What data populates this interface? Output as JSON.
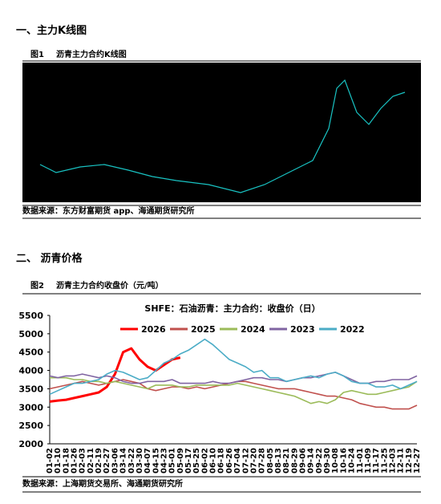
{
  "section1": {
    "heading": "一、主力K线图",
    "figure_label": "图1",
    "figure_title": "沥青主力合约K线图",
    "source": "数据来源：东方财富期货 app、海通期货研究所"
  },
  "section2": {
    "heading": "二、 沥青价格",
    "figure_label": "图2",
    "figure_title": "沥青主力合约收盘价（元/吨）",
    "source": "数据来源：上海期货交易所、海通期货研究所"
  },
  "chart_data": {
    "type": "line",
    "title": "SHFE：石油沥青：主力合约：收盘价（日）",
    "categories": [
      "01-02",
      "01-10",
      "01-18",
      "01-26",
      "02-03",
      "02-11",
      "02-19",
      "02-27",
      "03-06",
      "03-14",
      "03-22",
      "03-30",
      "04-07",
      "04-15",
      "04-23",
      "05-01",
      "05-09",
      "05-17",
      "05-25",
      "06-02",
      "06-10",
      "06-18",
      "06-26",
      "07-04",
      "07-12",
      "07-20",
      "07-28",
      "08-05",
      "08-13",
      "08-21",
      "08-29",
      "09-06",
      "09-14",
      "09-22",
      "09-30",
      "10-08",
      "10-16",
      "10-24",
      "11-01",
      "11-09",
      "11-17",
      "11-25",
      "12-03",
      "12-11",
      "12-19",
      "12-27"
    ],
    "series": [
      {
        "name": "2026",
        "color": "#ff0000",
        "width": 3,
        "values": [
          3150,
          3180,
          3200,
          3250,
          3300,
          3350,
          3400,
          3550,
          3900,
          4500,
          4600,
          4300,
          4100,
          4000,
          4150,
          4300,
          4350,
          null,
          null,
          null,
          null,
          null,
          null,
          null,
          null,
          null,
          null,
          null,
          null,
          null,
          null,
          null,
          null,
          null,
          null,
          null,
          null,
          null,
          null,
          null,
          null,
          null,
          null,
          null,
          null,
          null
        ]
      },
      {
        "name": "2025",
        "color": "#c0504d",
        "width": 1.6,
        "values": [
          3500,
          3550,
          3600,
          3650,
          3700,
          3650,
          3600,
          3650,
          3700,
          3750,
          3700,
          3650,
          3500,
          3450,
          3500,
          3550,
          3550,
          3500,
          3550,
          3500,
          3550,
          3600,
          3650,
          3700,
          3700,
          3650,
          3600,
          3550,
          3500,
          3500,
          3500,
          3450,
          3400,
          3350,
          3300,
          3300,
          3250,
          3200,
          3100,
          3050,
          3000,
          3000,
          2950,
          2950,
          2950,
          3050
        ]
      },
      {
        "name": "2024",
        "color": "#9bbb59",
        "width": 1.6,
        "values": [
          3800,
          3800,
          3800,
          3750,
          3750,
          3700,
          3700,
          3650,
          3700,
          3650,
          3600,
          3550,
          3500,
          3600,
          3600,
          3600,
          3550,
          3550,
          3600,
          3600,
          3600,
          3600,
          3600,
          3650,
          3600,
          3550,
          3500,
          3450,
          3400,
          3350,
          3300,
          3200,
          3100,
          3150,
          3100,
          3200,
          3400,
          3450,
          3400,
          3350,
          3350,
          3400,
          3450,
          3500,
          3550,
          3700
        ]
      },
      {
        "name": "2023",
        "color": "#8064a2",
        "width": 1.6,
        "values": [
          3850,
          3800,
          3850,
          3850,
          3900,
          3850,
          3800,
          3850,
          3800,
          3700,
          3650,
          3650,
          3700,
          3700,
          3700,
          3750,
          3650,
          3650,
          3650,
          3650,
          3700,
          3650,
          3650,
          3700,
          3750,
          3800,
          3800,
          3750,
          3750,
          3700,
          3750,
          3800,
          3800,
          3850,
          3900,
          3950,
          3850,
          3750,
          3650,
          3650,
          3700,
          3700,
          3750,
          3750,
          3750,
          3850
        ]
      },
      {
        "name": "2022",
        "color": "#4bacc6",
        "width": 1.6,
        "values": [
          3350,
          3450,
          3550,
          3650,
          3650,
          3700,
          3750,
          3900,
          4000,
          3950,
          3850,
          3750,
          3800,
          4000,
          4200,
          4300,
          4450,
          4550,
          4700,
          4850,
          4700,
          4500,
          4300,
          4200,
          4100,
          3950,
          4000,
          3800,
          3800,
          3700,
          3750,
          3800,
          3850,
          3800,
          3900,
          3950,
          3850,
          3700,
          3650,
          3650,
          3550,
          3550,
          3600,
          3500,
          3600,
          3700
        ]
      }
    ],
    "ylim": [
      2000,
      5500
    ],
    "yticks": [
      2000,
      2500,
      3000,
      3500,
      4000,
      4500,
      5000,
      5500
    ]
  }
}
